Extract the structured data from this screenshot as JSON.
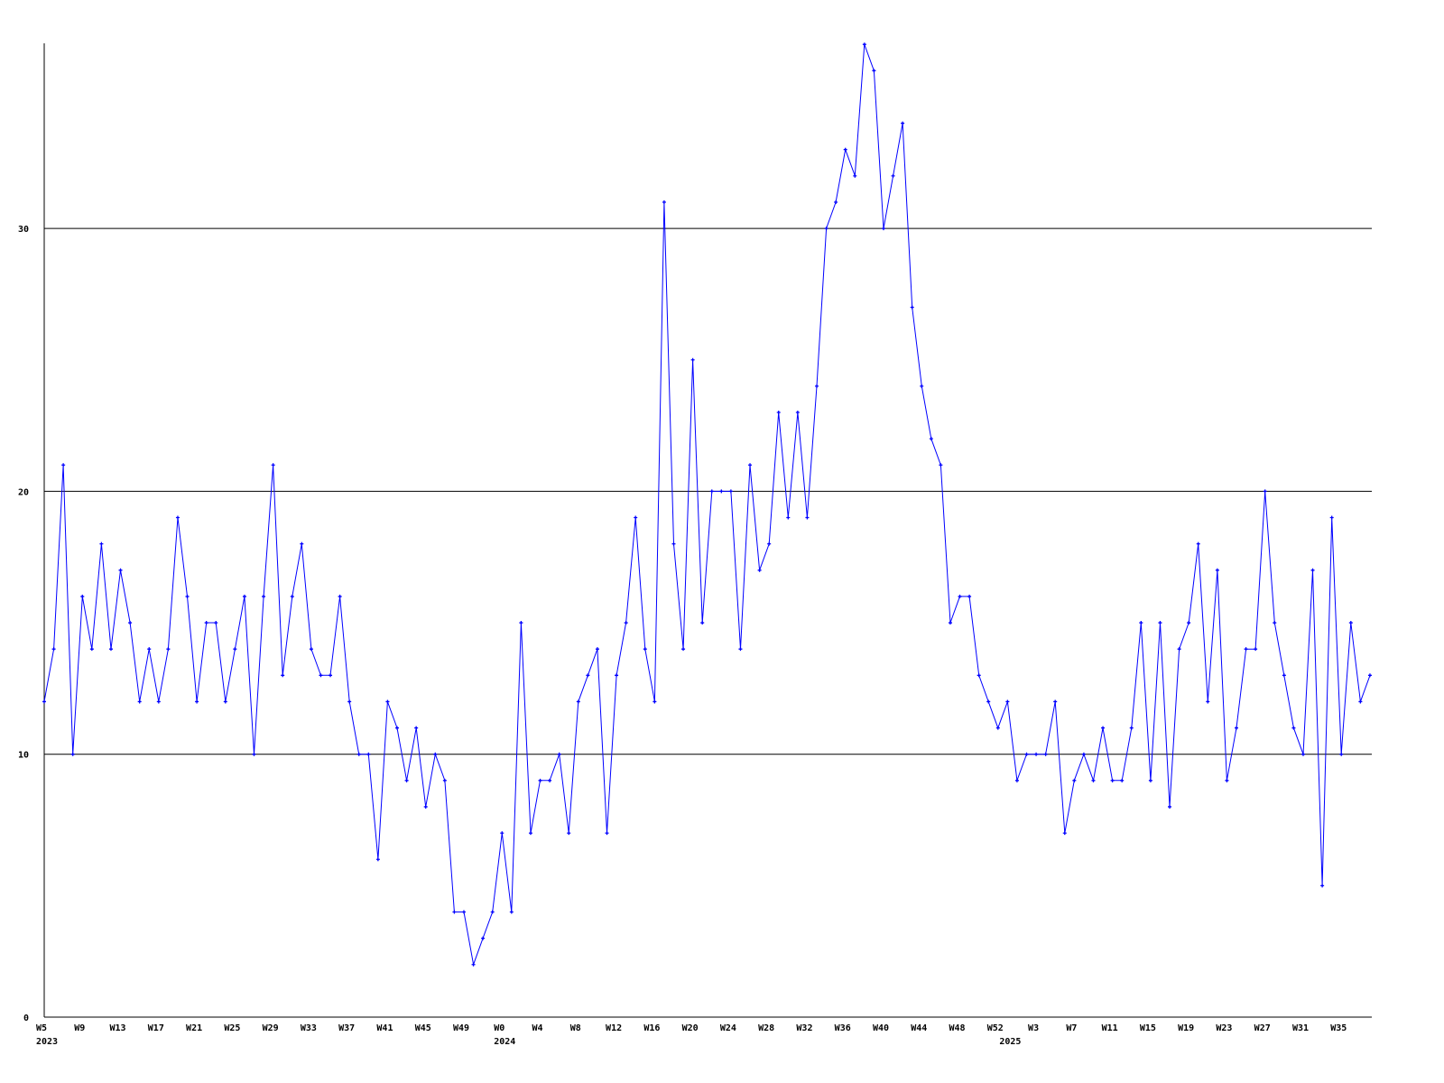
{
  "chart_data": {
    "type": "line",
    "title": "",
    "xlabel": "",
    "ylabel": "",
    "ylim": [
      0,
      37
    ],
    "y_ticks": [
      "0",
      "10",
      "20",
      "30"
    ],
    "grid": "horizontal at 10, 20, 30",
    "line_color": "#0000ff",
    "axis_color": "#000000",
    "markers": "small plus markers at each point",
    "x_tick_labels": [
      "W5",
      "W9",
      "W13",
      "W17",
      "W21",
      "W25",
      "W29",
      "W33",
      "W37",
      "W41",
      "W45",
      "W49",
      "W0",
      "W4",
      "W8",
      "W12",
      "W16",
      "W20",
      "W24",
      "W28",
      "W32",
      "W36",
      "W40",
      "W44",
      "W48",
      "W52",
      "W3",
      "W7",
      "W11",
      "W15",
      "W19",
      "W23",
      "W27",
      "W31",
      "W35"
    ],
    "year_labels": [
      {
        "label": "2023",
        "at": "2023 W5"
      },
      {
        "label": "2024",
        "at": "2024 W0"
      },
      {
        "label": "2025",
        "at": "2025 W0"
      }
    ],
    "series": [
      {
        "year": 2023,
        "start_week": 5,
        "end_week": 52,
        "values": [
          12,
          14,
          21,
          10,
          16,
          14,
          18,
          14,
          17,
          15,
          12,
          14,
          12,
          14,
          19,
          16,
          12,
          15,
          15,
          12,
          14,
          16,
          10,
          16,
          21,
          13,
          16,
          18,
          14,
          13,
          13,
          16,
          12,
          10,
          10,
          6,
          12,
          11,
          9,
          11,
          8,
          10,
          9,
          4,
          4,
          2,
          3,
          4
        ]
      },
      {
        "year": 2024,
        "start_week": 0,
        "end_week": 52,
        "values": [
          7,
          4,
          15,
          7,
          9,
          9,
          10,
          7,
          12,
          13,
          14,
          7,
          13,
          15,
          19,
          14,
          12,
          31,
          18,
          14,
          25,
          15,
          20,
          20,
          20,
          14,
          21,
          17,
          18,
          23,
          19,
          23,
          19,
          24,
          30,
          31,
          33,
          32,
          37,
          36,
          30,
          32,
          34,
          27,
          24,
          22,
          21,
          15,
          16,
          16,
          13,
          12,
          11
        ]
      },
      {
        "year": 2025,
        "start_week": 0,
        "end_week": 38,
        "values": [
          12,
          9,
          10,
          10,
          10,
          12,
          7,
          9,
          10,
          9,
          11,
          9,
          9,
          11,
          15,
          9,
          15,
          8,
          14,
          15,
          18,
          12,
          17,
          9,
          11,
          14,
          14,
          20,
          15,
          13,
          11,
          10,
          17,
          5,
          19,
          10,
          15,
          12,
          13
        ]
      }
    ]
  }
}
